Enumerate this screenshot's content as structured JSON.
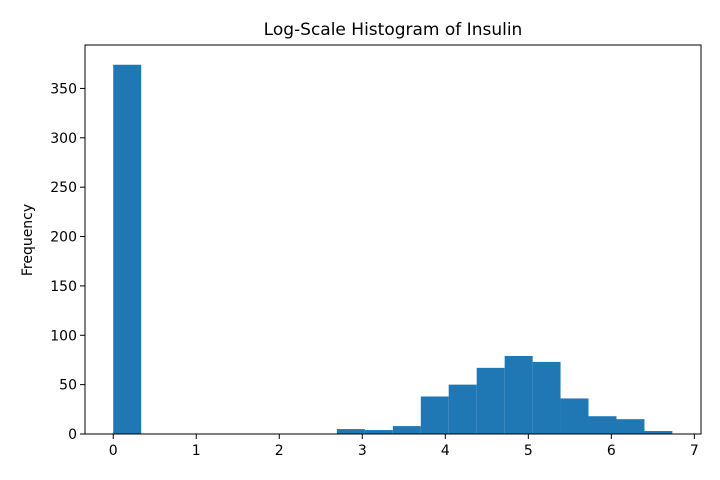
{
  "chart_data": {
    "type": "bar",
    "title": "Log-Scale Histogram of Insulin",
    "xlabel": "",
    "ylabel": "Frequency",
    "xlim": [
      -0.34,
      7.08
    ],
    "ylim": [
      0,
      394
    ],
    "xticks": [
      0,
      1,
      2,
      3,
      4,
      5,
      6,
      7
    ],
    "yticks": [
      0,
      50,
      100,
      150,
      200,
      250,
      300,
      350
    ],
    "grid": false,
    "legend": "none",
    "bar_color": "#1f77b4",
    "bins": [
      {
        "x0": 0.0,
        "x1": 0.337,
        "count": 374
      },
      {
        "x0": 2.694,
        "x1": 3.031,
        "count": 5
      },
      {
        "x0": 3.031,
        "x1": 3.368,
        "count": 4
      },
      {
        "x0": 3.368,
        "x1": 3.705,
        "count": 8
      },
      {
        "x0": 3.705,
        "x1": 4.041,
        "count": 38
      },
      {
        "x0": 4.041,
        "x1": 4.378,
        "count": 50
      },
      {
        "x0": 4.378,
        "x1": 4.715,
        "count": 67
      },
      {
        "x0": 4.715,
        "x1": 5.052,
        "count": 79
      },
      {
        "x0": 5.052,
        "x1": 5.388,
        "count": 73
      },
      {
        "x0": 5.388,
        "x1": 5.725,
        "count": 36
      },
      {
        "x0": 5.725,
        "x1": 6.062,
        "count": 18
      },
      {
        "x0": 6.062,
        "x1": 6.399,
        "count": 15
      },
      {
        "x0": 6.399,
        "x1": 6.735,
        "count": 3
      }
    ]
  }
}
